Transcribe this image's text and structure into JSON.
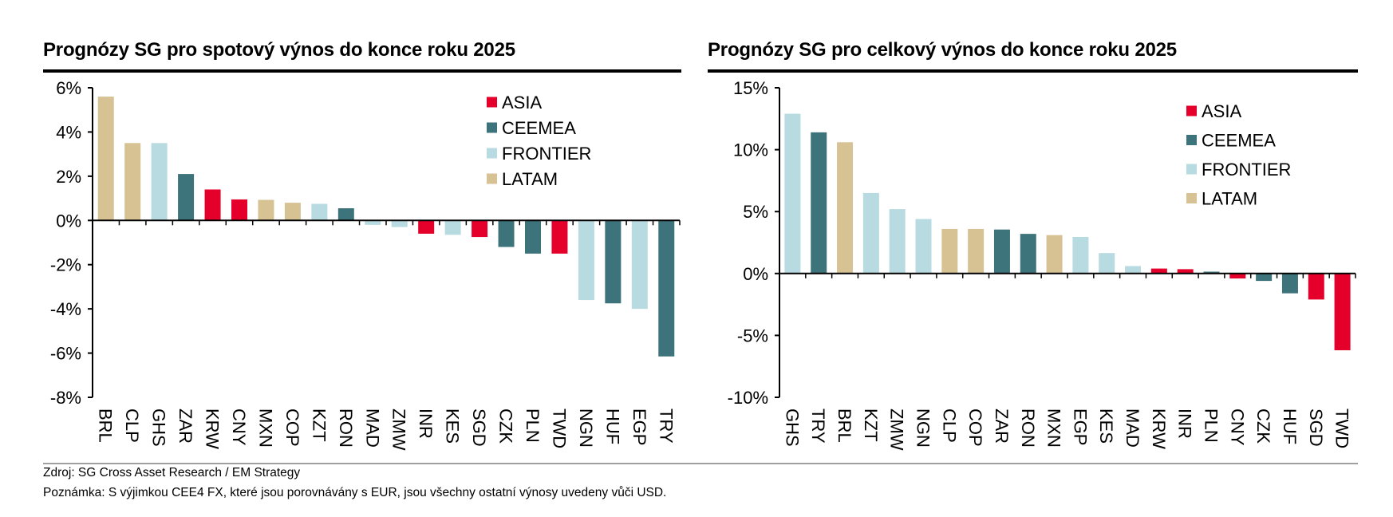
{
  "colors": {
    "ASIA": "#e4002b",
    "CEEMEA": "#3d737b",
    "FRONTIER": "#b7dbe0",
    "LATAM": "#d7c293"
  },
  "footer": {
    "source": "Zdroj: SG Cross Asset Research / EM Strategy",
    "note": "Poznámka: S výjimkou CEE4 FX, které jsou porovnávány s EUR, jsou všechny ostatní výnosy uvedeny vůči USD."
  },
  "chart_data": [
    {
      "type": "bar",
      "title": "Prognózy SG pro spotový výnos do konce roku 2025",
      "ylim": [
        -8,
        6
      ],
      "yticks": [
        6,
        4,
        2,
        0,
        -2,
        -4,
        -6,
        -8
      ],
      "ytick_labels": [
        "6%",
        "4%",
        "2%",
        "0%",
        "-2%",
        "-4%",
        "-6%",
        "-8%"
      ],
      "legend": [
        "ASIA",
        "CEEMEA",
        "FRONTIER",
        "LATAM"
      ],
      "legend_position": "top-right",
      "categories": [
        "BRL",
        "CLP",
        "GHS",
        "ZAR",
        "KRW",
        "CNY",
        "MXN",
        "COP",
        "KZT",
        "RON",
        "MAD",
        "ZMW",
        "INR",
        "KES",
        "SGD",
        "CZK",
        "PLN",
        "TWD",
        "NGN",
        "HUF",
        "EGP",
        "TRY"
      ],
      "values": [
        5.6,
        3.5,
        3.5,
        2.1,
        1.4,
        0.95,
        0.93,
        0.8,
        0.75,
        0.55,
        -0.2,
        -0.3,
        -0.6,
        -0.65,
        -0.75,
        -1.2,
        -1.5,
        -1.5,
        -3.6,
        -3.75,
        -4.0,
        -6.15
      ],
      "groups": [
        "LATAM",
        "LATAM",
        "FRONTIER",
        "CEEMEA",
        "ASIA",
        "ASIA",
        "LATAM",
        "LATAM",
        "FRONTIER",
        "CEEMEA",
        "FRONTIER",
        "FRONTIER",
        "ASIA",
        "FRONTIER",
        "ASIA",
        "CEEMEA",
        "CEEMEA",
        "ASIA",
        "FRONTIER",
        "CEEMEA",
        "FRONTIER",
        "CEEMEA"
      ]
    },
    {
      "type": "bar",
      "title": "Prognózy SG pro celkový výnos do konce roku 2025",
      "ylim": [
        -10,
        15
      ],
      "yticks": [
        15,
        10,
        5,
        0,
        -5,
        -10
      ],
      "ytick_labels": [
        "15%",
        "10%",
        "5%",
        "0%",
        "-5%",
        "-10%"
      ],
      "legend": [
        "ASIA",
        "CEEMEA",
        "FRONTIER",
        "LATAM"
      ],
      "legend_position": "top-right",
      "categories": [
        "GHS",
        "TRY",
        "BRL",
        "KZT",
        "ZMW",
        "NGN",
        "CLP",
        "COP",
        "ZAR",
        "RON",
        "MXN",
        "EGP",
        "KES",
        "MAD",
        "KRW",
        "INR",
        "PLN",
        "CNY",
        "CZK",
        "HUF",
        "SGD",
        "TWD"
      ],
      "values": [
        12.9,
        11.4,
        10.6,
        6.5,
        5.2,
        4.4,
        3.6,
        3.6,
        3.55,
        3.2,
        3.1,
        2.95,
        1.65,
        0.6,
        0.4,
        0.35,
        0.15,
        -0.4,
        -0.6,
        -1.6,
        -2.1,
        -6.2
      ],
      "groups": [
        "FRONTIER",
        "CEEMEA",
        "LATAM",
        "FRONTIER",
        "FRONTIER",
        "FRONTIER",
        "LATAM",
        "LATAM",
        "CEEMEA",
        "CEEMEA",
        "LATAM",
        "FRONTIER",
        "FRONTIER",
        "FRONTIER",
        "ASIA",
        "ASIA",
        "CEEMEA",
        "ASIA",
        "CEEMEA",
        "CEEMEA",
        "ASIA",
        "ASIA"
      ]
    }
  ]
}
